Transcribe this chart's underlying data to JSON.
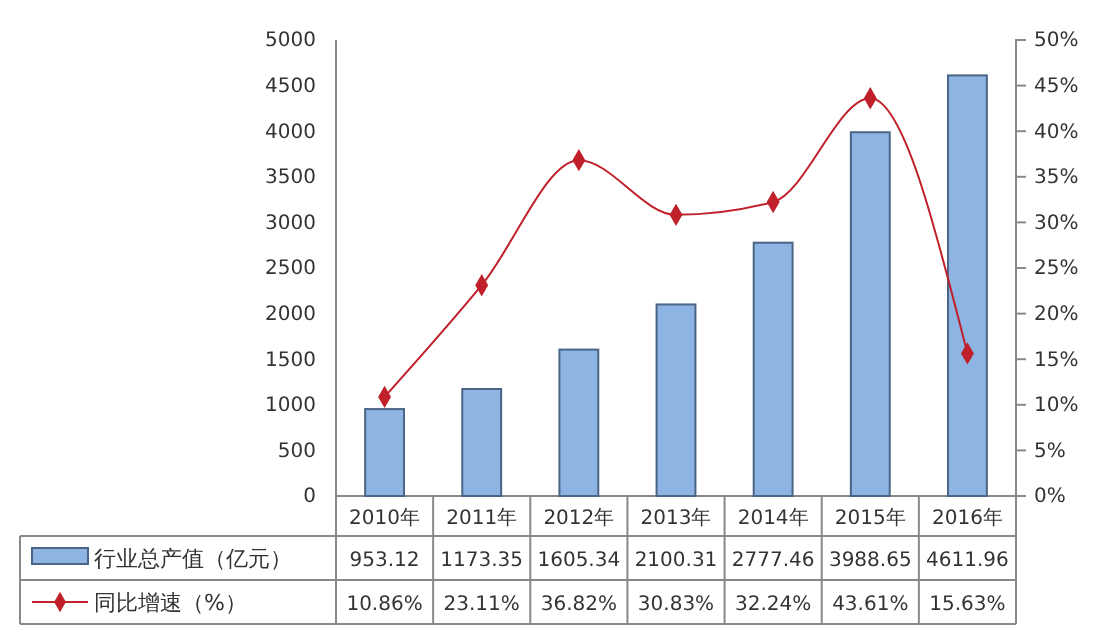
{
  "chart_data": {
    "type": "bar",
    "categories": [
      "2010年",
      "2011年",
      "2012年",
      "2013年",
      "2014年",
      "2015年",
      "2016年"
    ],
    "series": [
      {
        "name": "行业总产值（亿元）",
        "color": "#8db4e2",
        "values": [
          953.12,
          1173.35,
          1605.34,
          2100.31,
          2777.46,
          3988.65,
          4611.96
        ],
        "value_labels": [
          "953.12",
          "1173.35",
          "1605.34",
          "2100.31",
          "2777.46",
          "3988.65",
          "4611.96"
        ]
      },
      {
        "name": "同比增速（%）",
        "type": "line",
        "axis": "y2",
        "color": "#c0202a",
        "marker": "diamond",
        "values": [
          10.86,
          23.11,
          36.82,
          30.83,
          32.24,
          43.61,
          15.63
        ],
        "value_labels": [
          "10.86%",
          "23.11%",
          "36.82%",
          "30.83%",
          "32.24%",
          "43.61%",
          "15.63%"
        ]
      }
    ],
    "ylim": [
      0,
      5000
    ],
    "yticks": [
      0,
      500,
      1000,
      1500,
      2000,
      2500,
      3000,
      3500,
      4000,
      4500,
      5000
    ],
    "y2lim": [
      0,
      50
    ],
    "y2ticks": [
      {
        "value": 0,
        "label": "0%"
      },
      {
        "value": 5,
        "label": "5%"
      },
      {
        "value": 10,
        "label": "10%"
      },
      {
        "value": 15,
        "label": "15%"
      },
      {
        "value": 20,
        "label": "20%"
      },
      {
        "value": 25,
        "label": "25%"
      },
      {
        "value": 30,
        "label": "30%"
      },
      {
        "value": 35,
        "label": "35%"
      },
      {
        "value": 40,
        "label": "40%"
      },
      {
        "value": 45,
        "label": "45%"
      },
      {
        "value": 50,
        "label": "50%"
      }
    ],
    "legend": "bottom",
    "grid": false
  }
}
